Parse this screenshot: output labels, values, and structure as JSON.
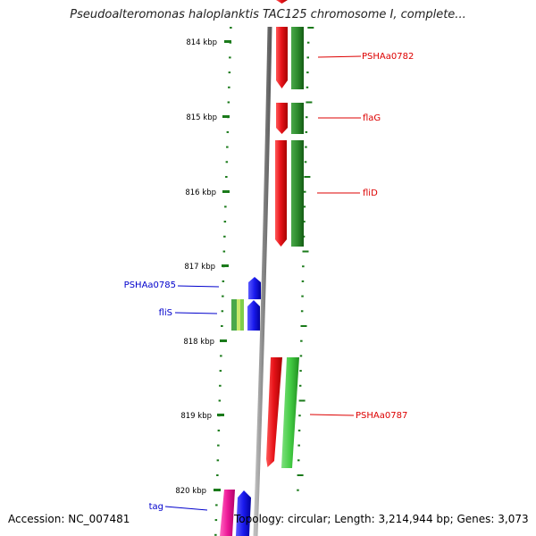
{
  "title": "Pseudoalteromonas haloplanktis TAC125 chromosome I, complete...",
  "footer": {
    "accession": "Accession: NC_007481",
    "summary": "Topology: circular; Length: 3,214,944 bp; Genes: 3,073"
  },
  "scale": {
    "unit": "kbp",
    "labels": [
      "814 kbp",
      "815 kbp",
      "816 kbp",
      "817 kbp",
      "818 kbp",
      "819 kbp",
      "820 kbp"
    ]
  },
  "colors": {
    "forward_gene": "#e8141a",
    "reverse_gene": "#2e8b2e",
    "reverse_gene_light": "#44cc44",
    "minus_gene": "#1a1aee",
    "pink_gene": "#ee1a99",
    "backbone": "#8c8c8c",
    "scale_tick": "#1a7a1a",
    "label_right": "#dd0000",
    "label_left": "#0000cc"
  },
  "gene_labels": [
    {
      "name": "PSHAa0782",
      "side": "right"
    },
    {
      "name": "flaG",
      "side": "right"
    },
    {
      "name": "fliD",
      "side": "right"
    },
    {
      "name": "PSHAa0785",
      "side": "left"
    },
    {
      "name": "fliS",
      "side": "left"
    },
    {
      "name": "PSHAa0787",
      "side": "right"
    },
    {
      "name": "tag",
      "side": "left"
    }
  ]
}
